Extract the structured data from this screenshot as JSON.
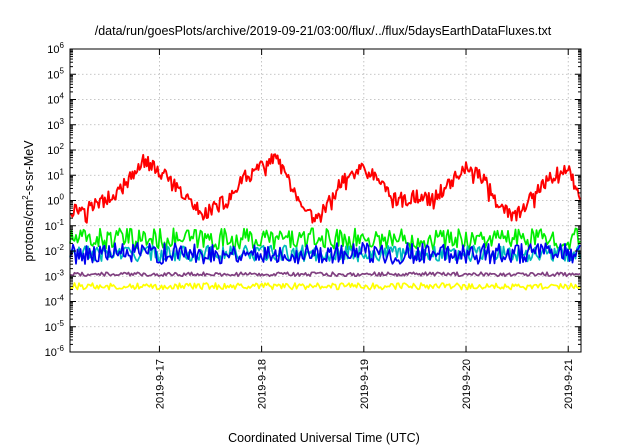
{
  "chart_data": {
    "type": "line",
    "title": "/data/run/goesPlots/archive/2019-09-21/03:00/flux/../flux/5daysEarthDataFluxes.txt",
    "xlabel": "Coordinated Universal Time (UTC)",
    "ylabel_parts": {
      "prefix": "protons/cm",
      "sup": "2",
      "suffix": "-s-sr-MeV"
    },
    "y_scale": "log",
    "ylim": [
      1e-06,
      1000000.0
    ],
    "y_ticks": [
      {
        "base": "10",
        "exp": "-6",
        "value": 1e-06
      },
      {
        "base": "10",
        "exp": "-5",
        "value": 1e-05
      },
      {
        "base": "10",
        "exp": "-4",
        "value": 0.0001
      },
      {
        "base": "10",
        "exp": "-3",
        "value": 0.001
      },
      {
        "base": "10",
        "exp": "-2",
        "value": 0.01
      },
      {
        "base": "10",
        "exp": "-1",
        "value": 0.1
      },
      {
        "base": "10",
        "exp": "0",
        "value": 1
      },
      {
        "base": "10",
        "exp": "1",
        "value": 10
      },
      {
        "base": "10",
        "exp": "2",
        "value": 100
      },
      {
        "base": "10",
        "exp": "3",
        "value": 1000
      },
      {
        "base": "10",
        "exp": "4",
        "value": 10000
      },
      {
        "base": "10",
        "exp": "5",
        "value": 100000
      },
      {
        "base": "10",
        "exp": "6",
        "value": 1000000
      }
    ],
    "xlim": [
      "2019-09-16T03:00",
      "2019-09-21T03:00"
    ],
    "x_ticks": [
      "2019-9-17",
      "2019-9-18",
      "2019-9-19",
      "2019-9-20",
      "2019-9-21"
    ],
    "grid": true,
    "series": [
      {
        "color": "#ff0000",
        "x": [
          "2019-09-16T03:00",
          "2019-09-16T06:00",
          "2019-09-16T10:00",
          "2019-09-16T14:00",
          "2019-09-16T18:00",
          "2019-09-16T20:00",
          "2019-09-17T00:00",
          "2019-09-17T05:00",
          "2019-09-17T10:00",
          "2019-09-17T16:00",
          "2019-09-17T20:00",
          "2019-09-18T00:00",
          "2019-09-18T03:00",
          "2019-09-18T06:00",
          "2019-09-18T09:00",
          "2019-09-18T13:00",
          "2019-09-18T16:00",
          "2019-09-18T20:00",
          "2019-09-19T00:00",
          "2019-09-19T04:00",
          "2019-09-19T08:00",
          "2019-09-19T12:00",
          "2019-09-19T16:00",
          "2019-09-19T20:00",
          "2019-09-20T00:00",
          "2019-09-20T04:00",
          "2019-09-20T07:00",
          "2019-09-20T11:00",
          "2019-09-20T15:00",
          "2019-09-20T20:00",
          "2019-09-21T00:00",
          "2019-09-21T03:00"
        ],
        "values": [
          0.4,
          0.5,
          0.8,
          2,
          10,
          40,
          15,
          2,
          0.3,
          1,
          8,
          20,
          55,
          8,
          0.5,
          0.15,
          1,
          10,
          18,
          5,
          1,
          1.5,
          1,
          5,
          20,
          8,
          1,
          0.2,
          1,
          8,
          20,
          1
        ]
      },
      {
        "color": "#00ee00",
        "x": [
          "2019-09-16T03:00",
          "2019-09-21T03:00"
        ],
        "values": [
          0.03,
          0.03
        ]
      },
      {
        "color": "#00bbbb",
        "x": [
          "2019-09-16T03:00",
          "2019-09-21T03:00"
        ],
        "values": [
          0.008,
          0.008
        ]
      },
      {
        "color": "#0000ee",
        "x": [
          "2019-09-16T03:00",
          "2019-09-21T03:00"
        ],
        "values": [
          0.008,
          0.008
        ]
      },
      {
        "color": "#804080",
        "x": [
          "2019-09-16T03:00",
          "2019-09-21T03:00"
        ],
        "values": [
          0.0012,
          0.0012
        ]
      },
      {
        "color": "#ffff00",
        "x": [
          "2019-09-16T03:00",
          "2019-09-21T03:00"
        ],
        "values": [
          0.0004,
          0.0004
        ]
      }
    ]
  }
}
